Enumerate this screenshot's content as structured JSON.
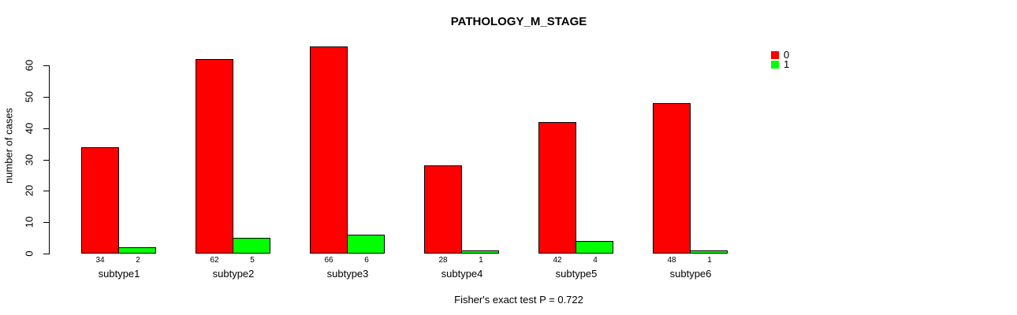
{
  "chart_data": {
    "type": "bar",
    "title": "PATHOLOGY_M_STAGE",
    "ylabel": "number of cases",
    "xlabel": "",
    "categories": [
      "subtype1",
      "subtype2",
      "subtype3",
      "subtype4",
      "subtype5",
      "subtype6"
    ],
    "series": [
      {
        "name": "0",
        "color": "#FF0000",
        "values": [
          34,
          62,
          66,
          28,
          42,
          48
        ]
      },
      {
        "name": "1",
        "color": "#00FF00",
        "values": [
          2,
          5,
          6,
          1,
          4,
          1
        ]
      }
    ],
    "yticks": [
      0,
      10,
      20,
      30,
      40,
      50,
      60
    ],
    "ylim": [
      0,
      66
    ],
    "grid": false,
    "legend_position": "top-right",
    "bar_value_labels": true,
    "annotation": "Fisher's exact test P = 0.722"
  }
}
